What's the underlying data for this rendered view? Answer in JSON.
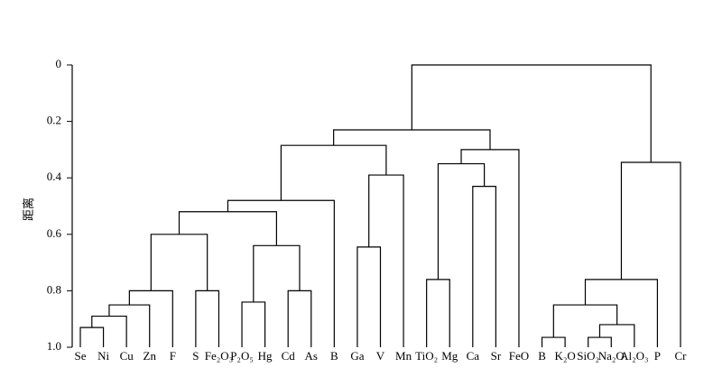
{
  "chart_data": {
    "type": "dendrogram",
    "y_label": "距离",
    "ylim": [
      0,
      1
    ],
    "yticks": [
      0,
      0.2,
      0.4,
      0.6,
      0.8,
      {
        "value": 1,
        "label": "1.0"
      }
    ],
    "leaves": [
      "Se",
      "Ni",
      "Cu",
      "Zn",
      "F",
      "S",
      "Fe₂O₃",
      "P₂O₅",
      "Hg",
      "Cd",
      "As",
      "B",
      "Ga",
      "V",
      "Mn",
      "TiO₂",
      "Mg",
      "Ca",
      "Sr",
      "FeO",
      "B",
      "K₂O",
      "SiO₂",
      "Na₂O",
      "Al₂O₃",
      "P",
      "Cr"
    ],
    "merges": [
      {
        "children": [
          0,
          1
        ],
        "height": 0.93
      },
      {
        "children": [
          27,
          2
        ],
        "height": 0.89
      },
      {
        "children": [
          28,
          3
        ],
        "height": 0.85
      },
      {
        "children": [
          29,
          4
        ],
        "height": 0.8
      },
      {
        "children": [
          5,
          6
        ],
        "height": 0.8
      },
      {
        "children": [
          7,
          8
        ],
        "height": 0.84
      },
      {
        "children": [
          9,
          10
        ],
        "height": 0.8
      },
      {
        "children": [
          30,
          31
        ],
        "height": 0.6
      },
      {
        "children": [
          32,
          33
        ],
        "height": 0.64
      },
      {
        "children": [
          34,
          35
        ],
        "height": 0.52
      },
      {
        "children": [
          36,
          11
        ],
        "height": 0.48
      },
      {
        "children": [
          12,
          13
        ],
        "height": 0.645
      },
      {
        "children": [
          38,
          14
        ],
        "height": 0.39
      },
      {
        "children": [
          37,
          39
        ],
        "height": 0.285
      },
      {
        "children": [
          15,
          16
        ],
        "height": 0.76
      },
      {
        "children": [
          17,
          18
        ],
        "height": 0.43
      },
      {
        "children": [
          41,
          42
        ],
        "height": 0.35
      },
      {
        "children": [
          43,
          19
        ],
        "height": 0.3
      },
      {
        "children": [
          40,
          44
        ],
        "height": 0.23
      },
      {
        "children": [
          20,
          21
        ],
        "height": 0.965
      },
      {
        "children": [
          22,
          23
        ],
        "height": 0.965
      },
      {
        "children": [
          47,
          24
        ],
        "height": 0.92
      },
      {
        "children": [
          46,
          48
        ],
        "height": 0.85
      },
      {
        "children": [
          49,
          25
        ],
        "height": 0.76
      },
      {
        "children": [
          50,
          26
        ],
        "height": 0.345
      },
      {
        "children": [
          45,
          51
        ],
        "height": 0
      }
    ],
    "color": "#000000"
  }
}
